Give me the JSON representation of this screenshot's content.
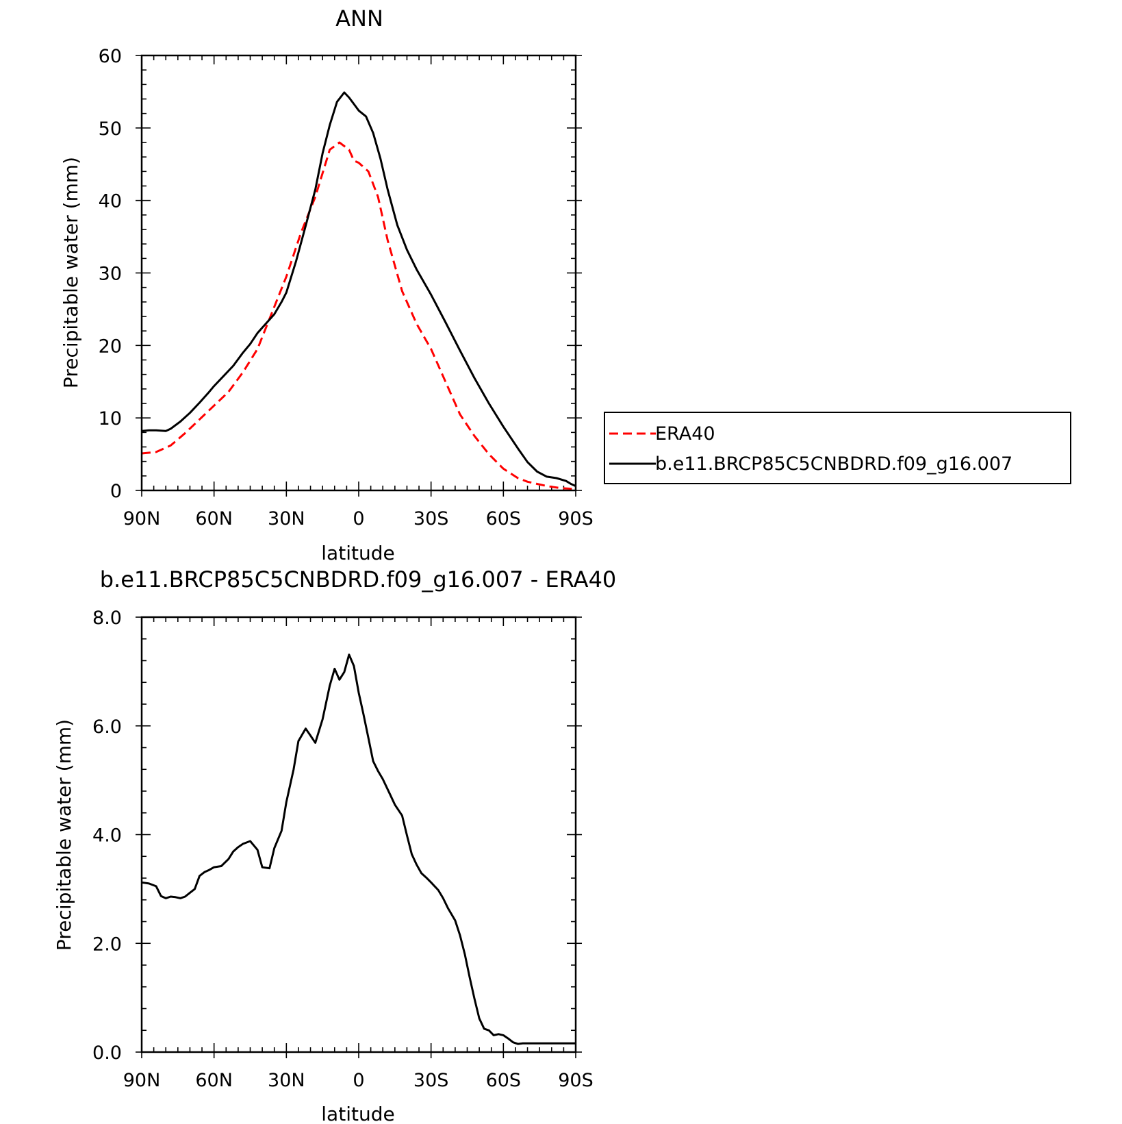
{
  "chart_data": [
    {
      "type": "line",
      "title": "ANN",
      "xlabel": "latitude",
      "ylabel": "Precipitable water (mm)",
      "xlim": [
        90,
        -90
      ],
      "ylim": [
        0,
        60
      ],
      "x_tick_values": [
        90,
        60,
        30,
        0,
        -30,
        -60,
        -90
      ],
      "x_tick_labels": [
        "90N",
        "60N",
        "30N",
        "0",
        "30S",
        "60S",
        "90S"
      ],
      "y_tick_values": [
        0,
        10,
        20,
        30,
        40,
        50,
        60
      ],
      "y_tick_labels": [
        "0",
        "10",
        "20",
        "30",
        "40",
        "50",
        "60"
      ],
      "grid": false,
      "legend_position": "right",
      "series": [
        {
          "name": "ERA40",
          "color": "#ff0000",
          "dash": "dashed",
          "x": [
            90,
            84,
            78,
            72,
            66,
            60,
            54,
            48,
            42,
            36,
            30,
            24,
            18,
            12,
            8,
            4,
            2,
            0,
            -4,
            -8,
            -12,
            -18,
            -24,
            -30,
            -36,
            -42,
            -48,
            -54,
            -60,
            -66,
            -70,
            -74,
            -78,
            -84,
            -90
          ],
          "y": [
            5.1,
            5.3,
            6.2,
            7.9,
            9.8,
            11.7,
            13.6,
            16.3,
            19.5,
            24.5,
            29.5,
            35.5,
            40.5,
            47.0,
            48.0,
            47.0,
            45.5,
            45.2,
            44.0,
            40.5,
            34.5,
            27.5,
            23.0,
            19.5,
            15.0,
            10.5,
            7.5,
            5.0,
            3.0,
            1.7,
            1.2,
            0.9,
            0.6,
            0.3,
            0.2
          ]
        },
        {
          "name": "b.e11.BRCP85C5CNBDRD.f09_g16.007",
          "color": "#000000",
          "dash": "solid",
          "x": [
            90,
            87,
            84,
            80,
            78,
            74,
            70,
            66,
            62,
            60,
            56,
            52,
            48,
            45,
            42,
            38,
            35,
            32,
            30,
            26,
            22,
            18,
            15,
            12,
            9,
            6,
            4,
            2,
            0,
            -3,
            -6,
            -9,
            -12,
            -16,
            -20,
            -24,
            -30,
            -36,
            -42,
            -48,
            -54,
            -60,
            -66,
            -70,
            -74,
            -78,
            -82,
            -86,
            -88,
            -90
          ],
          "y": [
            8.2,
            8.3,
            8.3,
            8.2,
            8.5,
            9.5,
            10.7,
            12.1,
            13.6,
            14.4,
            15.8,
            17.2,
            19.0,
            20.2,
            21.7,
            23.2,
            24.3,
            26.0,
            27.3,
            31.6,
            36.5,
            41.5,
            46.5,
            50.4,
            53.6,
            54.9,
            54.2,
            53.3,
            52.4,
            51.6,
            49.3,
            45.8,
            41.5,
            36.6,
            33.2,
            30.5,
            27.0,
            23.2,
            19.3,
            15.5,
            12.0,
            8.8,
            5.8,
            3.9,
            2.6,
            1.9,
            1.7,
            1.3,
            0.9,
            0.6
          ]
        }
      ]
    },
    {
      "type": "line",
      "title": "b.e11.BRCP85C5CNBDRD.f09_g16.007 - ERA40",
      "xlabel": "latitude",
      "ylabel": "Precipitable water (mm)",
      "xlim": [
        90,
        -90
      ],
      "ylim": [
        0,
        8
      ],
      "x_tick_values": [
        90,
        60,
        30,
        0,
        -30,
        -60,
        -90
      ],
      "x_tick_labels": [
        "90N",
        "60N",
        "30N",
        "0",
        "30S",
        "60S",
        "90S"
      ],
      "y_tick_values": [
        0,
        2,
        4,
        6,
        8
      ],
      "y_tick_labels": [
        "0.0",
        "2.0",
        "4.0",
        "6.0",
        "8.0"
      ],
      "grid": false,
      "series": [
        {
          "color": "#000000",
          "dash": "solid",
          "x": [
            90,
            87,
            84,
            82,
            80,
            78,
            76,
            74,
            72,
            70,
            68,
            66,
            64,
            62,
            60,
            57,
            54,
            52,
            50,
            48,
            45,
            42,
            40,
            37,
            35,
            32,
            30,
            27,
            25,
            22,
            20,
            18,
            15,
            12,
            10,
            8,
            6,
            4,
            2,
            0,
            -2,
            -4,
            -6,
            -8,
            -10,
            -13,
            -15,
            -18,
            -20,
            -22,
            -24,
            -26,
            -28,
            -30,
            -33,
            -35,
            -37,
            -40,
            -42,
            -44,
            -46,
            -48,
            -50,
            -52,
            -54,
            -56,
            -58,
            -60,
            -62,
            -64,
            -66,
            -68,
            -70,
            -72,
            -74,
            -76,
            -78,
            -80,
            -82,
            -84,
            -86,
            -88,
            -90
          ],
          "y": [
            3.12,
            3.1,
            3.05,
            2.87,
            2.83,
            2.86,
            2.85,
            2.83,
            2.86,
            2.93,
            3.0,
            3.24,
            3.31,
            3.35,
            3.4,
            3.42,
            3.55,
            3.69,
            3.77,
            3.83,
            3.88,
            3.72,
            3.4,
            3.38,
            3.75,
            4.07,
            4.6,
            5.2,
            5.72,
            5.95,
            5.82,
            5.69,
            6.12,
            6.74,
            7.05,
            6.85,
            6.99,
            7.31,
            7.1,
            6.61,
            6.21,
            5.78,
            5.35,
            5.17,
            5.02,
            4.74,
            4.55,
            4.35,
            3.99,
            3.64,
            3.45,
            3.29,
            3.21,
            3.12,
            2.98,
            2.83,
            2.65,
            2.42,
            2.15,
            1.8,
            1.38,
            0.98,
            0.62,
            0.43,
            0.4,
            0.31,
            0.33,
            0.31,
            0.25,
            0.18,
            0.15,
            0.16,
            0.16,
            0.16,
            0.16,
            0.16,
            0.16,
            0.16,
            0.16,
            0.16,
            0.16,
            0.16,
            0.16
          ]
        }
      ]
    }
  ]
}
